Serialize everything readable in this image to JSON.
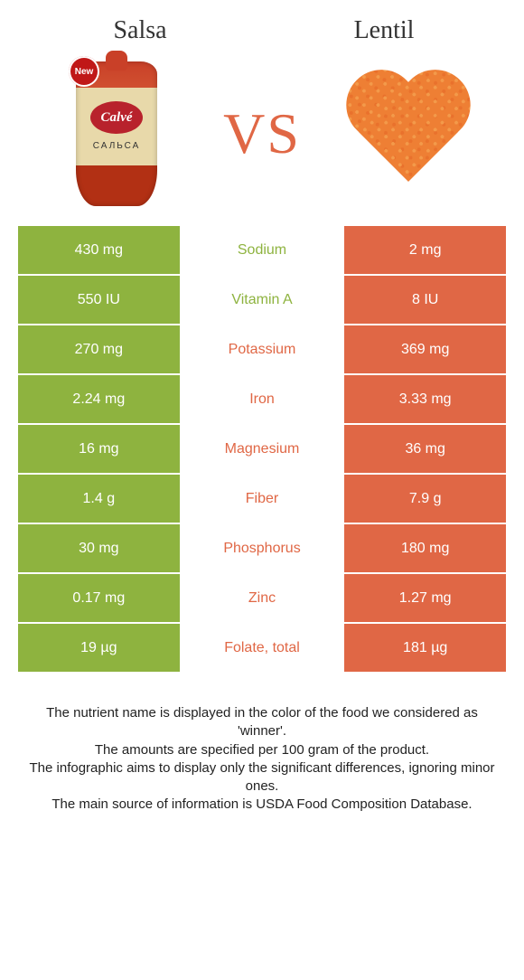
{
  "colors": {
    "salsa": "#8eb33f",
    "lentil": "#e06745",
    "salsa_text": "#ffffff",
    "lentil_text": "#ffffff",
    "vs": "#e06745",
    "center_bg": "#ffffff"
  },
  "header": {
    "left": "Salsa",
    "right": "Lentil",
    "vs": "VS"
  },
  "salsa_label": {
    "logo": "Calvé",
    "sub": "САЛЬСА",
    "new": "New"
  },
  "rows": [
    {
      "left": "430 mg",
      "name": "Sodium",
      "right": "2 mg",
      "winner": "salsa"
    },
    {
      "left": "550 IU",
      "name": "Vitamin A",
      "right": "8 IU",
      "winner": "salsa"
    },
    {
      "left": "270 mg",
      "name": "Potassium",
      "right": "369 mg",
      "winner": "lentil"
    },
    {
      "left": "2.24 mg",
      "name": "Iron",
      "right": "3.33 mg",
      "winner": "lentil"
    },
    {
      "left": "16 mg",
      "name": "Magnesium",
      "right": "36 mg",
      "winner": "lentil"
    },
    {
      "left": "1.4 g",
      "name": "Fiber",
      "right": "7.9 g",
      "winner": "lentil"
    },
    {
      "left": "30 mg",
      "name": "Phosphorus",
      "right": "180 mg",
      "winner": "lentil"
    },
    {
      "left": "0.17 mg",
      "name": "Zinc",
      "right": "1.27 mg",
      "winner": "lentil"
    },
    {
      "left": "19 µg",
      "name": "Folate, total",
      "right": "181 µg",
      "winner": "lentil"
    }
  ],
  "footer": [
    "The nutrient name is displayed in the color of the food we considered as 'winner'.",
    "The amounts are specified per 100 gram of the product.",
    "The infographic aims to display only the significant differences, ignoring minor ones.",
    "The main source of information is USDA Food Composition Database."
  ]
}
